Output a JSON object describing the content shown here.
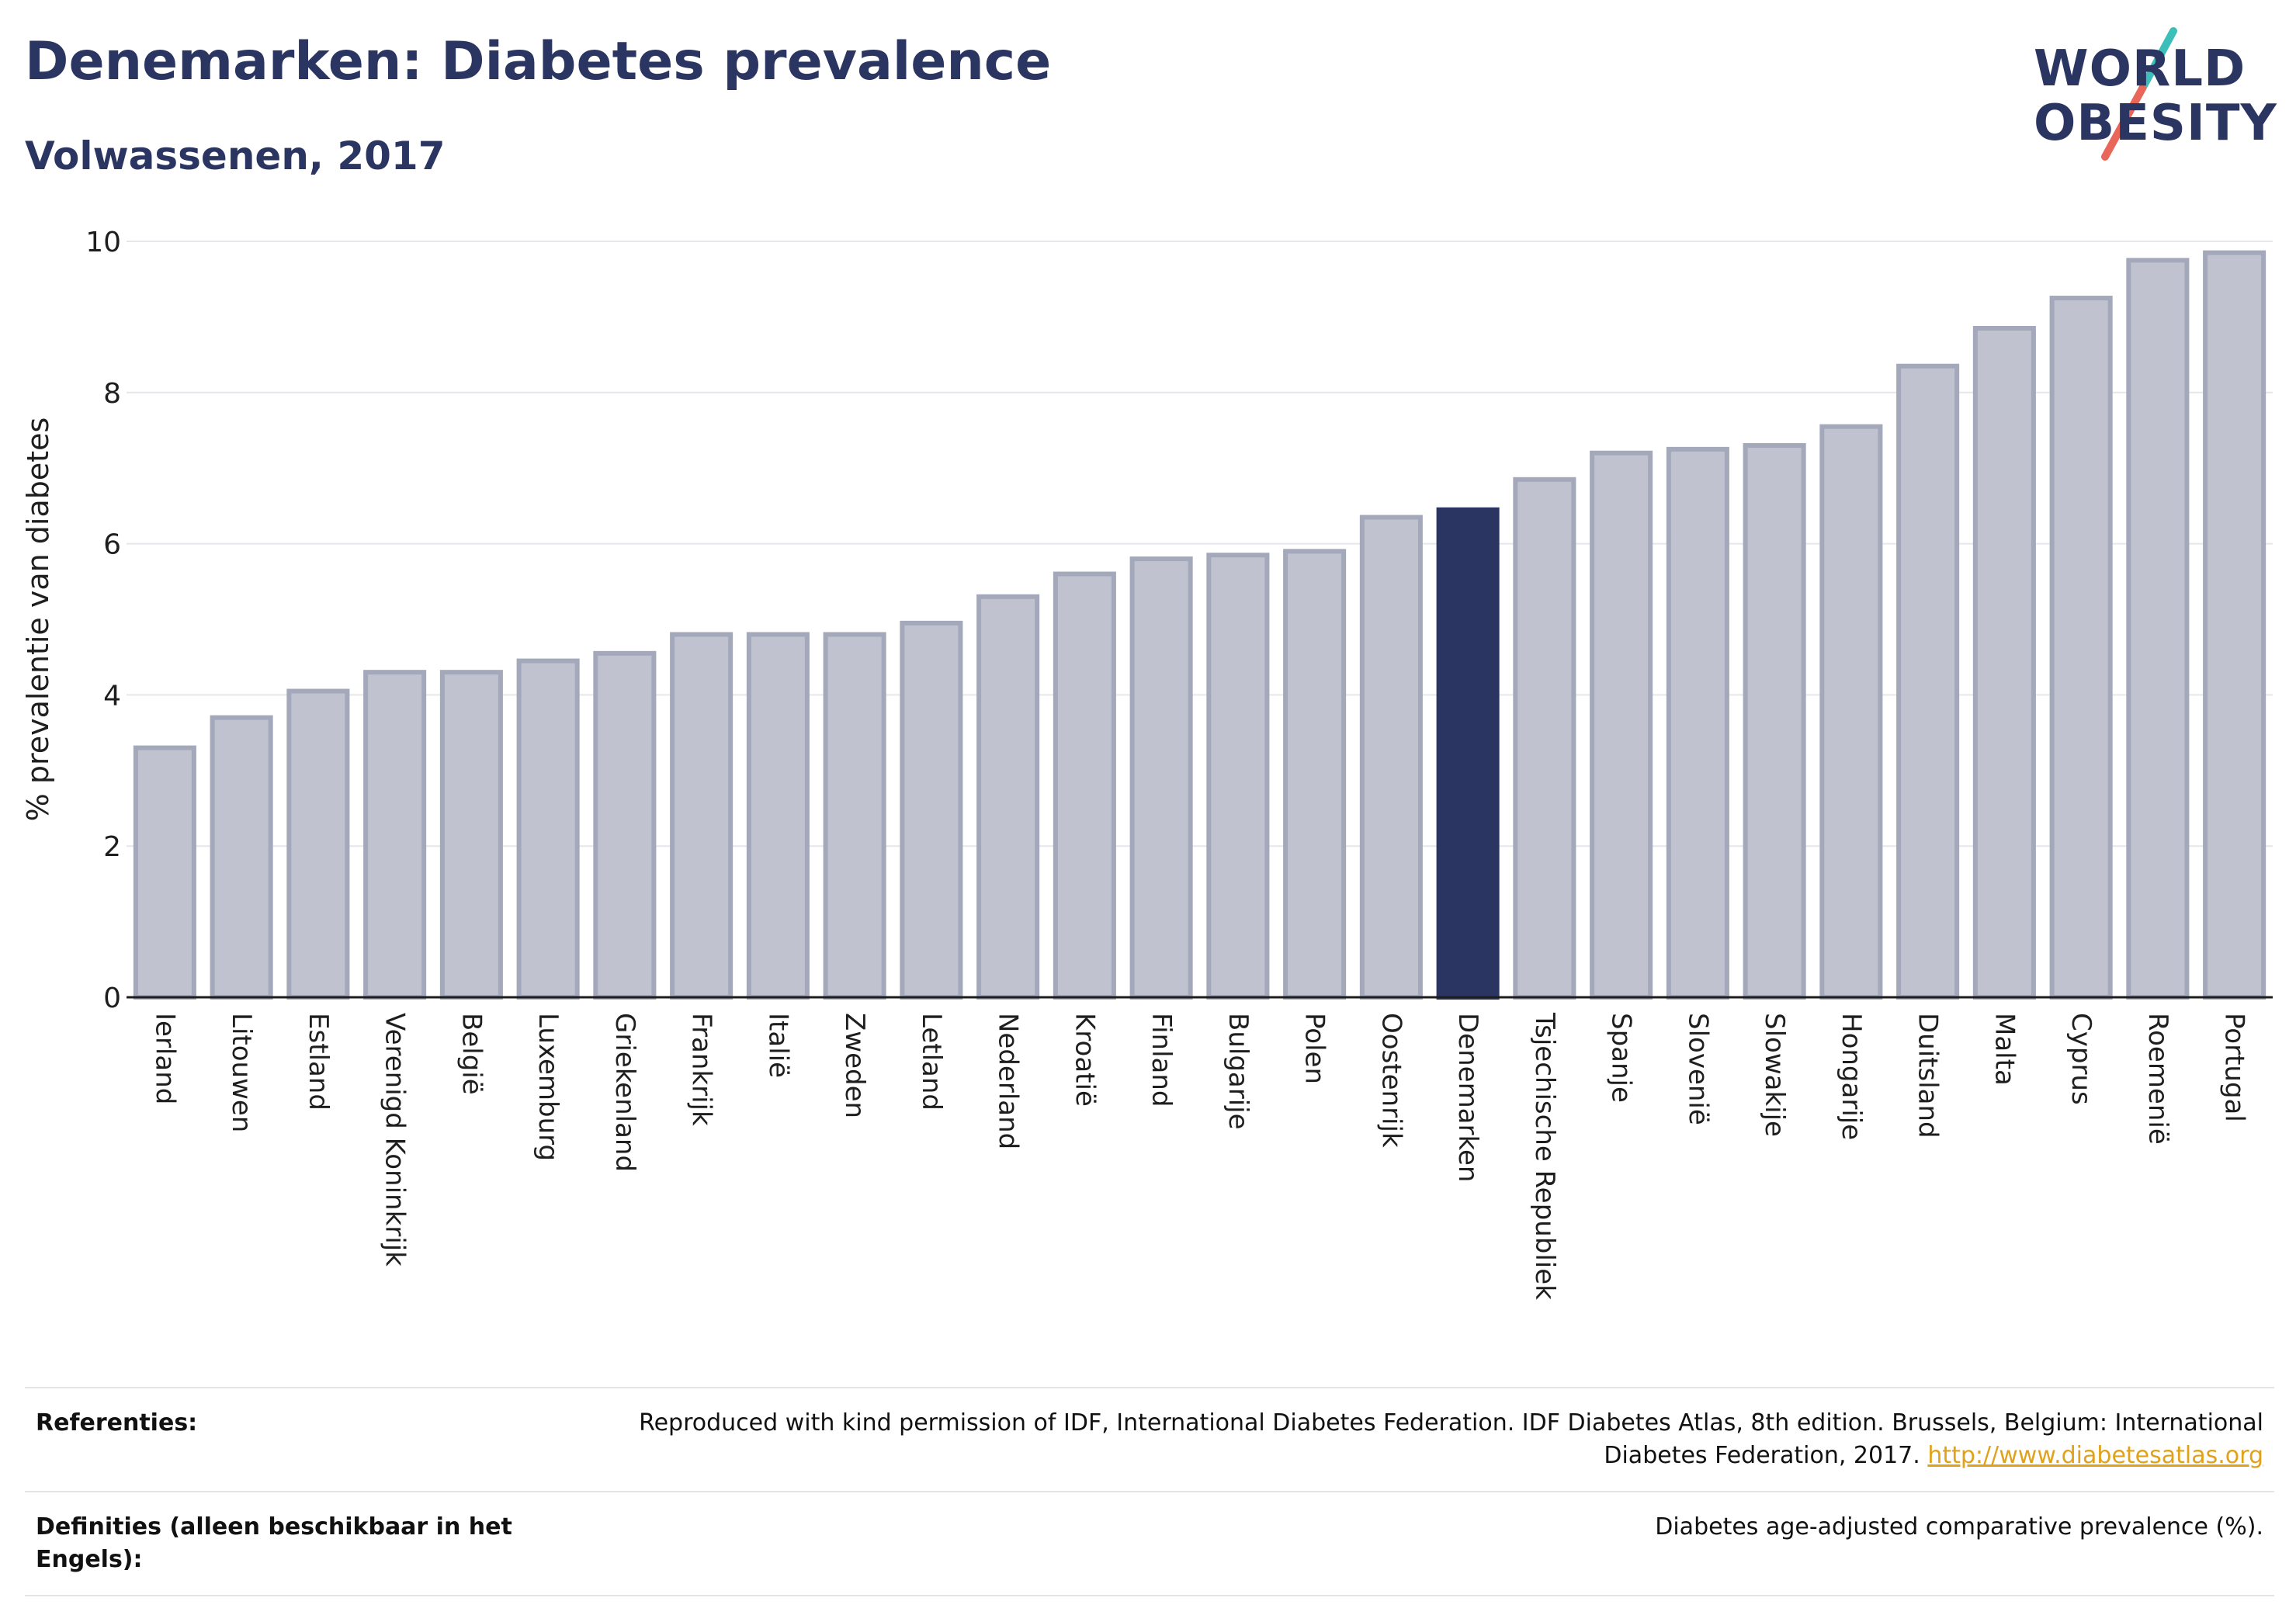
{
  "header": {
    "title": "Denemarken: Diabetes prevalence",
    "subtitle": "Volwassenen, 2017"
  },
  "logo": {
    "line1": "WORLD",
    "line2": "OBESITY"
  },
  "colors": {
    "bar_fill": "#c0c3cf",
    "bar_stroke": "#a3a8ba",
    "highlight": "#2b3561",
    "title": "#2b3561",
    "link": "#e0a21b",
    "logo_teal": "#3bbfb8",
    "logo_coral": "#e8675a"
  },
  "chart_data": {
    "type": "bar",
    "ylabel": "% prevalentie van diabetes",
    "xlabel": "",
    "ylim": [
      0,
      10
    ],
    "yticks": [
      0,
      2,
      4,
      6,
      8,
      10
    ],
    "grid": true,
    "highlight": "Denemarken",
    "categories": [
      "Ierland",
      "Litouwen",
      "Estland",
      "Verenigd Koninkrijk",
      "België",
      "Luxemburg",
      "Griekenland",
      "Frankrijk",
      "Italië",
      "Zweden",
      "Letland",
      "Nederland",
      "Kroatië",
      "Finland",
      "Bulgarije",
      "Polen",
      "Oostenrijk",
      "Denemarken",
      "Tsjechische Republiek",
      "Spanje",
      "Slovenië",
      "Slowakije",
      "Hongarije",
      "Duitsland",
      "Malta",
      "Cyprus",
      "Roemenië",
      "Portugal"
    ],
    "values": [
      3.3,
      3.7,
      4.05,
      4.3,
      4.3,
      4.45,
      4.55,
      4.8,
      4.8,
      4.8,
      4.95,
      5.3,
      5.6,
      5.8,
      5.85,
      5.9,
      6.35,
      6.45,
      6.85,
      7.2,
      7.25,
      7.3,
      7.55,
      8.35,
      8.85,
      9.25,
      9.75,
      9.85
    ]
  },
  "references": {
    "ref_label": "Referenties:",
    "ref_text": "Reproduced with kind permission of IDF, International Diabetes Federation. IDF Diabetes Atlas, 8th edition. Brussels, Belgium: International Diabetes Federation, 2017.",
    "ref_link": "http://www.diabetesatlas.org",
    "def_label": "Definities (alleen beschikbaar in het Engels):",
    "def_text": "Diabetes age-adjusted comparative prevalence (%)."
  }
}
